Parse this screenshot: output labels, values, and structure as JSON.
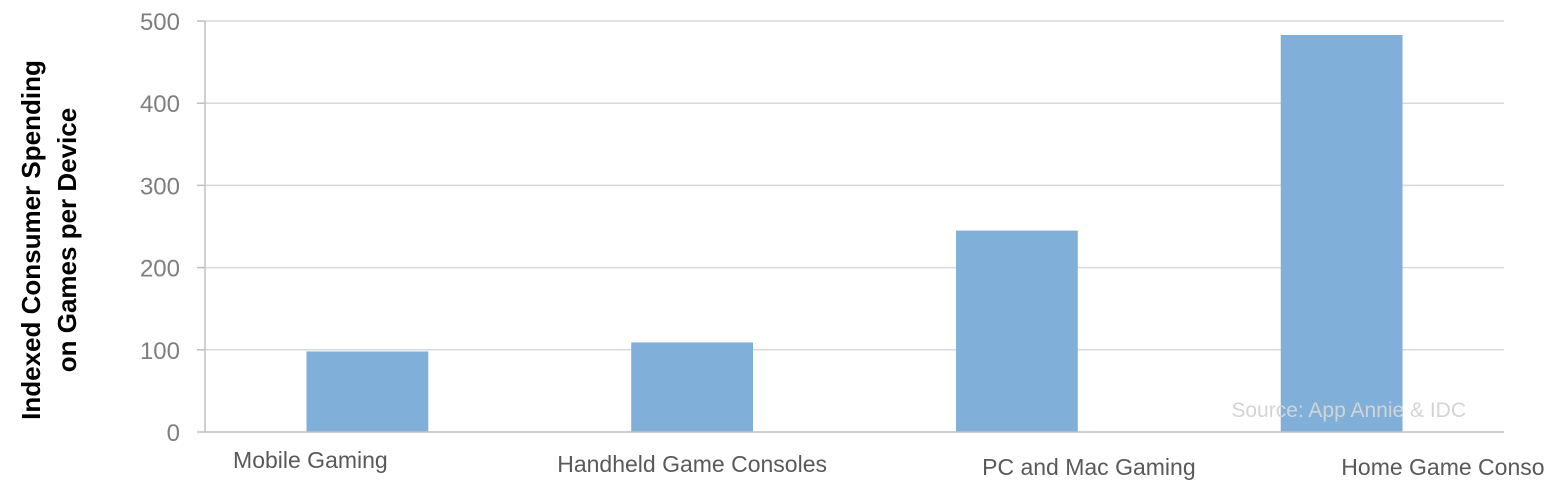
{
  "chart_data": {
    "type": "bar",
    "title": "",
    "xlabel": "",
    "ylabel": "Indexed Consumer Spending on Games per Device",
    "ylabel_lines": [
      "Indexed Consumer Spending",
      "on Games per Device"
    ],
    "categories": [
      "Mobile Gaming",
      "Handheld Game Consoles",
      "PC and Mac Gaming",
      "Home Game Consoles"
    ],
    "values": [
      98,
      109,
      245,
      483
    ],
    "ylim": [
      0,
      500
    ],
    "yticks": [
      "0",
      "100",
      "200",
      "300",
      "400",
      "500"
    ],
    "grid": true,
    "legend": "none",
    "annotation": "Source: App Annie & IDC",
    "colors": {
      "bar": "#80b0d9",
      "grid": "#d9d9d9",
      "axis": "#bfbfbf"
    }
  }
}
